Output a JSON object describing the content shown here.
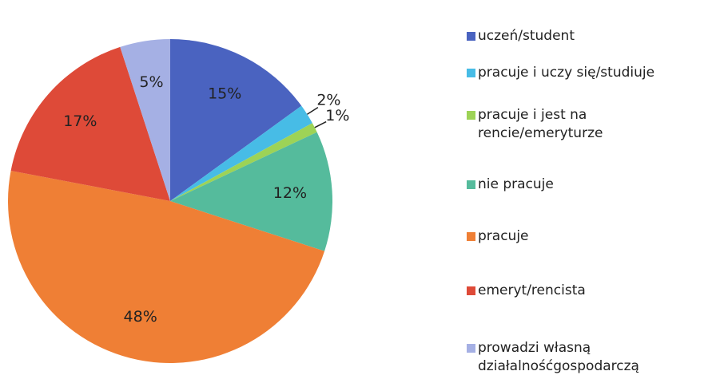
{
  "chart_data": {
    "type": "pie",
    "categories": [
      "uczeń/student",
      "pracuje i uczy się/studiuje",
      "pracuje i jest na\nrencie/emeryturze",
      "nie pracuje",
      "pracuje",
      "emeryt/rencista",
      "prowadzi własną\ndziałalnośćgospodarczą"
    ],
    "values": [
      15,
      2,
      1,
      12,
      48,
      17,
      5
    ],
    "value_labels": [
      "15%",
      "2%",
      "1%",
      "12%",
      "48%",
      "17%",
      "5%"
    ],
    "colors": [
      "#4a63c0",
      "#47bce6",
      "#9dd356",
      "#55bb9c",
      "#ef7f35",
      "#de4a38",
      "#a5b0e4"
    ],
    "legend": "right"
  }
}
